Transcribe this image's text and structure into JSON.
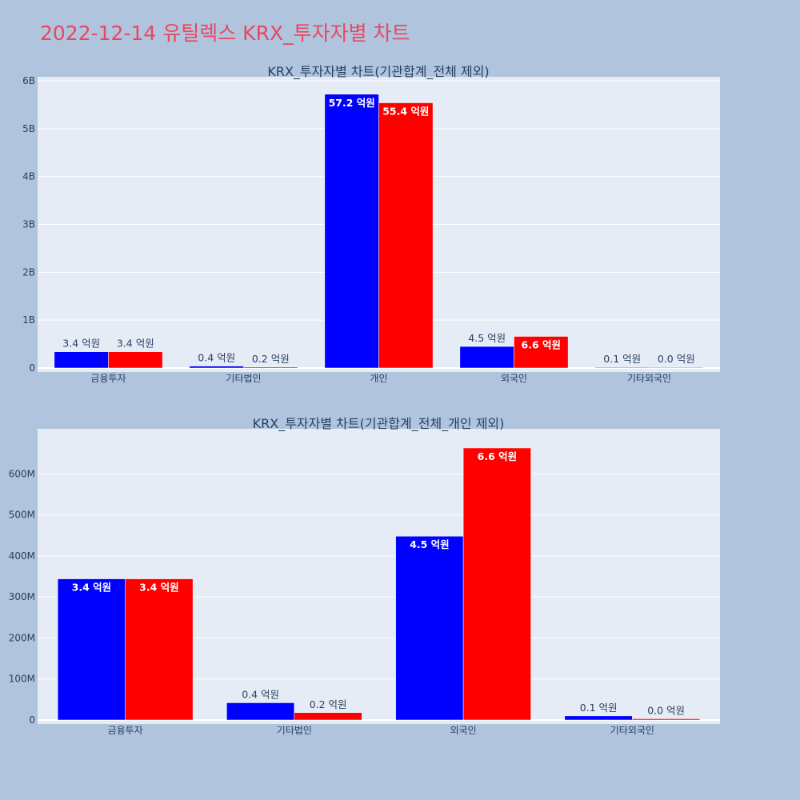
{
  "page": {
    "title": "2022-12-14 유틸렉스 KRX_투자자별 차트",
    "title_color": "#e8475f",
    "background": "#b0c4de",
    "plot_background": "#e5ecf6"
  },
  "chart_data": [
    {
      "type": "bar",
      "title": "KRX_투자자별 차트(기관합계_전체 제외)",
      "xlabel": "",
      "ylabel": "",
      "categories": [
        "금융투자",
        "기타법인",
        "개인",
        "외국인",
        "기타외국인"
      ],
      "ylim": [
        0,
        6000000000
      ],
      "yticks": [
        0,
        1000000000,
        2000000000,
        3000000000,
        4000000000,
        5000000000,
        6000000000
      ],
      "ytick_labels": [
        "0",
        "1B",
        "2B",
        "3B",
        "4B",
        "5B",
        "6B"
      ],
      "grid": true,
      "series": [
        {
          "color": "#0000ff",
          "values": [
            340000000,
            40000000,
            5720000000,
            450000000,
            10000000
          ],
          "labels": [
            "3.4 억원",
            "0.4 억원",
            "57.2 억원",
            "4.5 억원",
            "0.1 억원"
          ]
        },
        {
          "color": "#ff0000",
          "values": [
            340000000,
            20000000,
            5540000000,
            660000000,
            2000000
          ],
          "labels": [
            "3.4 억원",
            "0.2 억원",
            "55.4 억원",
            "6.6 억원",
            "0.0 억원"
          ]
        }
      ]
    },
    {
      "type": "bar",
      "title": "KRX_투자자별 차트(기관합계_전체_개인 제외)",
      "xlabel": "",
      "ylabel": "",
      "categories": [
        "금융투자",
        "기타법인",
        "외국인",
        "기타외국인"
      ],
      "ylim": [
        0,
        700000000
      ],
      "yticks": [
        0,
        100000000,
        200000000,
        300000000,
        400000000,
        500000000,
        600000000
      ],
      "ytick_labels": [
        "0",
        "100M",
        "200M",
        "300M",
        "400M",
        "500M",
        "600M"
      ],
      "grid": true,
      "series": [
        {
          "color": "#0000ff",
          "values": [
            344000000,
            42000000,
            448000000,
            10000000
          ],
          "labels": [
            "3.4 억원",
            "0.4 억원",
            "4.5 억원",
            "0.1 억원"
          ]
        },
        {
          "color": "#ff0000",
          "values": [
            344000000,
            18000000,
            663000000,
            3000000
          ],
          "labels": [
            "3.4 억원",
            "0.2 억원",
            "6.6 억원",
            "0.0 억원"
          ]
        }
      ]
    }
  ]
}
